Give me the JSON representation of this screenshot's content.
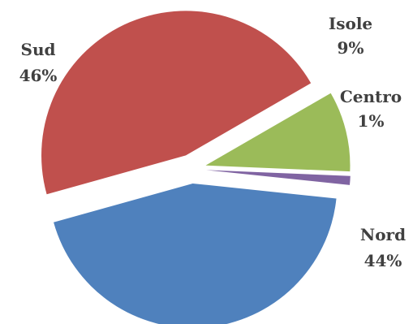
{
  "chart_data": {
    "type": "pie",
    "title": "",
    "legend": "none",
    "exploded": true,
    "slices": [
      {
        "label": "Isole",
        "value": 9,
        "percent_label": "9%",
        "color": "#9BBB59"
      },
      {
        "label": "Centro",
        "value": 1,
        "percent_label": "1%",
        "color": "#8064A2"
      },
      {
        "label": "Nord",
        "value": 44,
        "percent_label": "44%",
        "color": "#4F81BD"
      },
      {
        "label": "Sud",
        "value": 46,
        "percent_label": "46%",
        "color": "#C0504D"
      }
    ]
  }
}
